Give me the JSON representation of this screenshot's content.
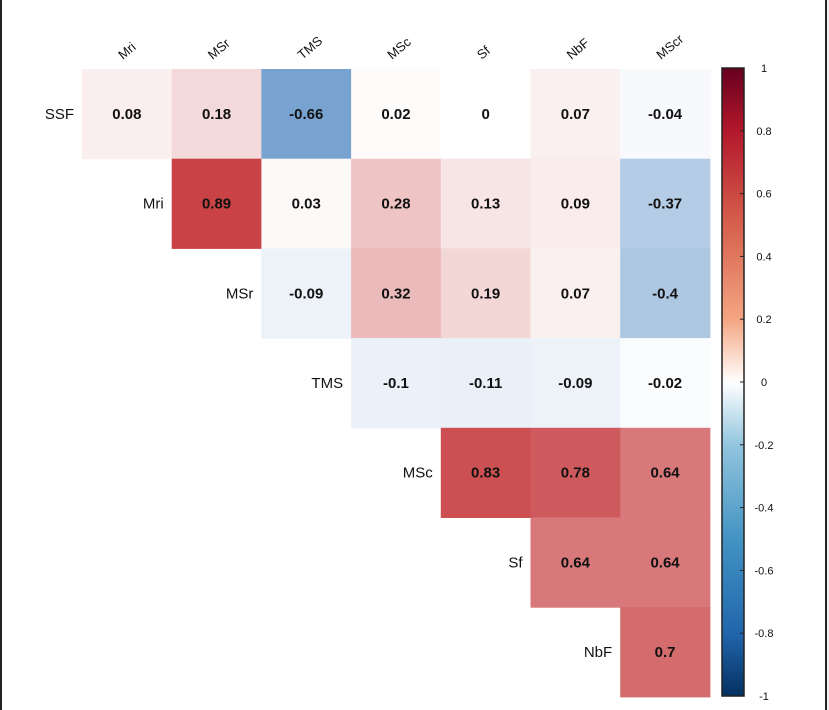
{
  "chart_data": {
    "type": "heatmap",
    "title": "",
    "columns": [
      "Mri",
      "MSr",
      "TMS",
      "MSc",
      "Sf",
      "NbF",
      "MScr"
    ],
    "rows": [
      "SSF",
      "Mri",
      "MSr",
      "TMS",
      "MSc",
      "Sf",
      "NbF"
    ],
    "values": [
      [
        "0.08",
        "0.18",
        "-0.66",
        "0.02",
        "0",
        "0.07",
        "-0.04"
      ],
      [
        null,
        "0.89",
        "0.03",
        "0.28",
        "0.13",
        "0.09",
        "-0.37"
      ],
      [
        null,
        null,
        "-0.09",
        "0.32",
        "0.19",
        "0.07",
        "-0.4"
      ],
      [
        null,
        null,
        null,
        "-0.1",
        "-0.11",
        "-0.09",
        "-0.02"
      ],
      [
        null,
        null,
        null,
        null,
        "0.83",
        "0.78",
        "0.64"
      ],
      [
        null,
        null,
        null,
        null,
        null,
        "0.64",
        "0.64"
      ],
      [
        null,
        null,
        null,
        null,
        null,
        null,
        "0.7"
      ]
    ],
    "color_scale": {
      "min": -1,
      "max": 1,
      "ticks": [
        "1",
        "0.8",
        "0.6",
        "0.4",
        "0.2",
        "0",
        "-0.2",
        "-0.4",
        "-0.6",
        "-0.8",
        "-1"
      ],
      "colors": {
        "negative": "#2166ac",
        "mid": "#ffffff",
        "positive": "#b2182b"
      }
    },
    "legend_position": "right"
  }
}
